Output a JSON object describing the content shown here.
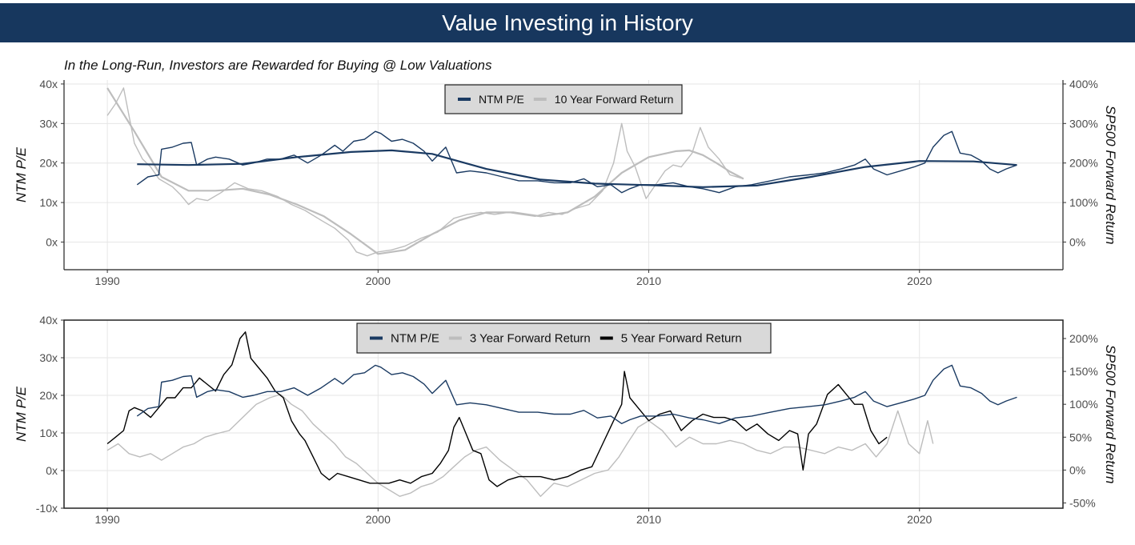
{
  "header": {
    "title": "Value Investing in History"
  },
  "subtitle": "In the Long-Run, Investors are Rewarded for Buying @ Low Valuations",
  "colors": {
    "ntm_pe": "#1a3a62",
    "ten_year": "#bdbdbd",
    "three_year": "#bdbdbd",
    "five_year": "#000000",
    "banner": "#17375e"
  },
  "chart_data": [
    {
      "type": "line",
      "y_left_label": "NTM P/E",
      "y_right_label": "SP500 Forward Return",
      "x_ticks": [
        "1990",
        "2000",
        "2010",
        "2020"
      ],
      "y_left_ticks": [
        "0x",
        "10x",
        "20x",
        "30x",
        "40x"
      ],
      "y_right_ticks": [
        "0%",
        "100%",
        "200%",
        "300%",
        "400%"
      ],
      "xlim": [
        1988.4,
        2025.3
      ],
      "ylim_left": [
        -7,
        41
      ],
      "ylim_right": [
        -70,
        410
      ],
      "legend_position": "top-center",
      "grid": true,
      "series": [
        {
          "name": "NTM P/E",
          "axis": "left",
          "key": "pe",
          "x": [
            1991.1,
            1991.5,
            1991.9,
            1992.0,
            1992.4,
            1992.8,
            1993.1,
            1993.3,
            1993.7,
            1994.0,
            1994.5,
            1995.0,
            1995.4,
            1995.9,
            1996.4,
            1996.9,
            1997.4,
            1997.9,
            1998.4,
            1998.7,
            1999.1,
            1999.5,
            1999.9,
            2000.1,
            2000.5,
            2000.9,
            2001.3,
            2001.7,
            2002.0,
            2002.5,
            2002.9,
            2003.4,
            2004.0,
            2004.6,
            2005.2,
            2005.9,
            2006.5,
            2007.1,
            2007.6,
            2008.1,
            2008.6,
            2009.0,
            2009.3,
            2009.7,
            2010.3,
            2010.9,
            2011.5,
            2012.0,
            2012.6,
            2013.2,
            2013.8,
            2014.5,
            2015.2,
            2015.9,
            2016.5,
            2017.1,
            2017.6,
            2018.0,
            2018.3,
            2018.8,
            2019.3,
            2019.8,
            2020.2,
            2020.5,
            2020.9,
            2021.2,
            2021.5,
            2021.9,
            2022.3,
            2022.6,
            2022.9,
            2023.2,
            2023.6
          ],
          "y": [
            14.5,
            16.5,
            17.0,
            23.5,
            24.0,
            25.0,
            25.2,
            19.5,
            21.0,
            21.5,
            21.0,
            19.5,
            20.0,
            21.0,
            21.0,
            22.0,
            20.0,
            22.0,
            24.5,
            23.0,
            25.5,
            26.0,
            28.0,
            27.5,
            25.5,
            26.0,
            25.0,
            23.0,
            20.5,
            24.0,
            17.5,
            18.0,
            17.5,
            16.5,
            15.5,
            15.5,
            15.0,
            15.0,
            16.0,
            14.0,
            14.5,
            12.5,
            13.5,
            14.5,
            14.5,
            15.0,
            14.0,
            13.5,
            12.5,
            14.0,
            14.5,
            15.5,
            16.5,
            17.0,
            17.5,
            18.5,
            19.5,
            21.0,
            18.5,
            17.0,
            18.0,
            19.0,
            20.0,
            24.0,
            27.0,
            28.0,
            22.5,
            22.0,
            20.5,
            18.5,
            17.5,
            18.5,
            19.5
          ]
        },
        {
          "name": "NTM P/E smoothed",
          "axis": "left",
          "key": "pe_smooth",
          "x": [
            1991.1,
            1993.0,
            1995.0,
            1997.0,
            1999.0,
            2000.5,
            2002.0,
            2004.0,
            2006.0,
            2008.0,
            2010.0,
            2012.0,
            2014.0,
            2016.0,
            2018.0,
            2020.0,
            2022.0,
            2023.6
          ],
          "y": [
            19.7,
            19.5,
            19.8,
            21.5,
            22.8,
            23.2,
            22.3,
            18.5,
            15.8,
            14.8,
            14.4,
            13.9,
            14.3,
            16.5,
            19.0,
            20.5,
            20.4,
            19.5
          ]
        },
        {
          "name": "10 Year Forward Return",
          "axis": "right",
          "key": "r10",
          "x": [
            1990.0,
            1990.3,
            1990.6,
            1991.0,
            1991.3,
            1991.6,
            1991.9,
            1992.4,
            1992.7,
            1993.0,
            1993.3,
            1993.7,
            1994.2,
            1994.7,
            1995.2,
            1995.7,
            1996.3,
            1996.8,
            1997.3,
            1997.9,
            1998.4,
            1998.9,
            1999.2,
            1999.6,
            2000.0,
            2000.5,
            2001.0,
            2001.6,
            2002.2,
            2002.8,
            2003.3,
            2003.8,
            2004.3,
            2004.8,
            2005.3,
            2005.8,
            2006.3,
            2006.8,
            2007.3,
            2007.8,
            2008.3,
            2008.7,
            2009.0,
            2009.2,
            2009.5,
            2009.9,
            2010.3,
            2010.6,
            2010.9,
            2011.2,
            2011.6,
            2011.9,
            2012.2,
            2012.6,
            2013.0,
            2013.5
          ],
          "y": [
            320,
            350,
            390,
            250,
            210,
            190,
            160,
            140,
            120,
            95,
            110,
            105,
            125,
            150,
            135,
            130,
            115,
            95,
            80,
            55,
            35,
            5,
            -25,
            -35,
            -25,
            -20,
            -10,
            10,
            25,
            60,
            70,
            75,
            70,
            75,
            70,
            65,
            75,
            70,
            85,
            95,
            130,
            200,
            300,
            230,
            190,
            110,
            150,
            180,
            195,
            190,
            225,
            290,
            240,
            210,
            170,
            160
          ]
        },
        {
          "name": "10 Year Forward Return smoothed",
          "axis": "right",
          "key": "r10_smooth",
          "x": [
            1990.0,
            1991.0,
            1992.0,
            1993.0,
            1994.0,
            1995.0,
            1996.0,
            1997.0,
            1998.0,
            1999.0,
            2000.0,
            2001.0,
            2002.0,
            2003.0,
            2004.0,
            2005.0,
            2006.0,
            2007.0,
            2008.0,
            2009.0,
            2010.0,
            2011.0,
            2011.5,
            2012.0,
            2012.5,
            2013.0,
            2013.5
          ],
          "y": [
            390,
            280,
            165,
            130,
            130,
            135,
            120,
            95,
            65,
            20,
            -30,
            -20,
            20,
            55,
            75,
            75,
            65,
            75,
            115,
            175,
            215,
            230,
            232,
            220,
            200,
            178,
            160
          ]
        }
      ]
    },
    {
      "type": "line",
      "y_left_label": "NTM P/E",
      "y_right_label": "SP500 Forward Return",
      "x_ticks": [
        "1990",
        "2000",
        "2010",
        "2020"
      ],
      "y_left_ticks": [
        "-10x",
        "0x",
        "10x",
        "20x",
        "30x",
        "40x"
      ],
      "y_right_ticks": [
        "-50%",
        "0%",
        "50%",
        "100%",
        "150%",
        "200%"
      ],
      "xlim": [
        1988.4,
        2025.3
      ],
      "ylim_left": [
        -10,
        40
      ],
      "ylim_right": [
        -58,
        228
      ],
      "legend_position": "top-center",
      "grid": true,
      "series": [
        {
          "name": "NTM P/E",
          "axis": "left",
          "key": "pe",
          "x": [
            1991.1,
            1991.5,
            1991.9,
            1992.0,
            1992.4,
            1992.8,
            1993.1,
            1993.3,
            1993.7,
            1994.0,
            1994.5,
            1995.0,
            1995.4,
            1995.9,
            1996.4,
            1996.9,
            1997.4,
            1997.9,
            1998.4,
            1998.7,
            1999.1,
            1999.5,
            1999.9,
            2000.1,
            2000.5,
            2000.9,
            2001.3,
            2001.7,
            2002.0,
            2002.5,
            2002.9,
            2003.4,
            2004.0,
            2004.6,
            2005.2,
            2005.9,
            2006.5,
            2007.1,
            2007.6,
            2008.1,
            2008.6,
            2009.0,
            2009.3,
            2009.7,
            2010.3,
            2010.9,
            2011.5,
            2012.0,
            2012.6,
            2013.2,
            2013.8,
            2014.5,
            2015.2,
            2015.9,
            2016.5,
            2017.1,
            2017.6,
            2018.0,
            2018.3,
            2018.8,
            2019.3,
            2019.8,
            2020.2,
            2020.5,
            2020.9,
            2021.2,
            2021.5,
            2021.9,
            2022.3,
            2022.6,
            2022.9,
            2023.2,
            2023.6
          ],
          "y": [
            14.5,
            16.5,
            17.0,
            23.5,
            24.0,
            25.0,
            25.2,
            19.5,
            21.0,
            21.5,
            21.0,
            19.5,
            20.0,
            21.0,
            21.0,
            22.0,
            20.0,
            22.0,
            24.5,
            23.0,
            25.5,
            26.0,
            28.0,
            27.5,
            25.5,
            26.0,
            25.0,
            23.0,
            20.5,
            24.0,
            17.5,
            18.0,
            17.5,
            16.5,
            15.5,
            15.5,
            15.0,
            15.0,
            16.0,
            14.0,
            14.5,
            12.5,
            13.5,
            14.5,
            14.5,
            15.0,
            14.0,
            13.5,
            12.5,
            14.0,
            14.5,
            15.5,
            16.5,
            17.0,
            17.5,
            18.5,
            19.5,
            21.0,
            18.5,
            17.0,
            18.0,
            19.0,
            20.0,
            24.0,
            27.0,
            28.0,
            22.5,
            22.0,
            20.5,
            18.5,
            17.5,
            18.5,
            19.5
          ]
        },
        {
          "name": "3 Year Forward Return",
          "axis": "right",
          "key": "r3",
          "x": [
            1990.0,
            1990.4,
            1990.8,
            1991.2,
            1991.6,
            1992.0,
            1992.4,
            1992.8,
            1993.2,
            1993.6,
            1994.0,
            1994.5,
            1995.0,
            1995.5,
            1996.0,
            1996.4,
            1996.8,
            1997.2,
            1997.6,
            1998.0,
            1998.4,
            1998.8,
            1999.2,
            1999.6,
            2000.0,
            2000.4,
            2000.8,
            2001.2,
            2001.6,
            2002.0,
            2002.4,
            2002.8,
            2003.2,
            2003.6,
            2004.0,
            2004.5,
            2005.0,
            2005.5,
            2006.0,
            2006.5,
            2007.0,
            2007.5,
            2008.0,
            2008.5,
            2008.9,
            2009.2,
            2009.6,
            2010.0,
            2010.5,
            2011.0,
            2011.5,
            2012.0,
            2012.5,
            2013.0,
            2013.5,
            2014.0,
            2014.5,
            2015.0,
            2015.5,
            2016.0,
            2016.5,
            2017.0,
            2017.5,
            2018.0,
            2018.4,
            2018.8,
            2019.2,
            2019.6,
            2020.0,
            2020.3,
            2020.5
          ],
          "y": [
            30,
            40,
            25,
            20,
            25,
            15,
            25,
            35,
            40,
            50,
            55,
            60,
            80,
            100,
            110,
            115,
            100,
            90,
            70,
            55,
            40,
            20,
            10,
            -5,
            -20,
            -30,
            -40,
            -35,
            -25,
            -20,
            -10,
            5,
            20,
            30,
            35,
            15,
            0,
            -15,
            -40,
            -20,
            -25,
            -15,
            -5,
            0,
            20,
            40,
            65,
            75,
            60,
            35,
            50,
            40,
            40,
            45,
            40,
            30,
            25,
            35,
            35,
            30,
            25,
            35,
            30,
            40,
            20,
            40,
            90,
            40,
            25,
            75,
            40
          ]
        },
        {
          "name": "5 Year Forward Return",
          "axis": "right",
          "key": "r5",
          "x": [
            1990.0,
            1990.3,
            1990.6,
            1990.8,
            1991.0,
            1991.3,
            1991.6,
            1991.9,
            1992.2,
            1992.5,
            1992.8,
            1993.1,
            1993.4,
            1993.7,
            1994.0,
            1994.3,
            1994.6,
            1994.9,
            1995.1,
            1995.3,
            1995.6,
            1995.9,
            1996.2,
            1996.5,
            1996.8,
            1997.1,
            1997.3,
            1997.6,
            1997.9,
            1998.2,
            1998.5,
            1998.9,
            1999.3,
            1999.7,
            2000.0,
            2000.4,
            2000.8,
            2001.2,
            2001.6,
            2002.0,
            2002.3,
            2002.6,
            2002.8,
            2003.0,
            2003.2,
            2003.5,
            2003.8,
            2004.1,
            2004.4,
            2004.8,
            2005.2,
            2005.6,
            2006.0,
            2006.5,
            2007.0,
            2007.5,
            2007.9,
            2008.3,
            2008.7,
            2009.0,
            2009.1,
            2009.3,
            2009.6,
            2010.0,
            2010.4,
            2010.8,
            2011.2,
            2011.6,
            2012.0,
            2012.4,
            2012.8,
            2013.2,
            2013.6,
            2014.0,
            2014.4,
            2014.8,
            2015.2,
            2015.5,
            2015.7,
            2015.9,
            2016.2,
            2016.6,
            2017.0,
            2017.3,
            2017.6,
            2017.9,
            2018.2,
            2018.5,
            2018.8
          ],
          "y": [
            40,
            50,
            60,
            90,
            95,
            90,
            80,
            95,
            110,
            110,
            125,
            125,
            140,
            130,
            120,
            145,
            160,
            200,
            210,
            170,
            155,
            140,
            120,
            110,
            75,
            55,
            45,
            20,
            -5,
            -15,
            -5,
            -10,
            -15,
            -20,
            -20,
            -20,
            -15,
            -20,
            -10,
            -5,
            10,
            30,
            65,
            80,
            60,
            30,
            25,
            -15,
            -25,
            -15,
            -10,
            -10,
            -10,
            -15,
            -10,
            0,
            5,
            40,
            75,
            100,
            150,
            110,
            95,
            75,
            85,
            90,
            60,
            75,
            85,
            80,
            80,
            75,
            60,
            70,
            55,
            45,
            60,
            55,
            0,
            55,
            70,
            115,
            130,
            115,
            100,
            100,
            60,
            40,
            50
          ]
        }
      ]
    }
  ]
}
